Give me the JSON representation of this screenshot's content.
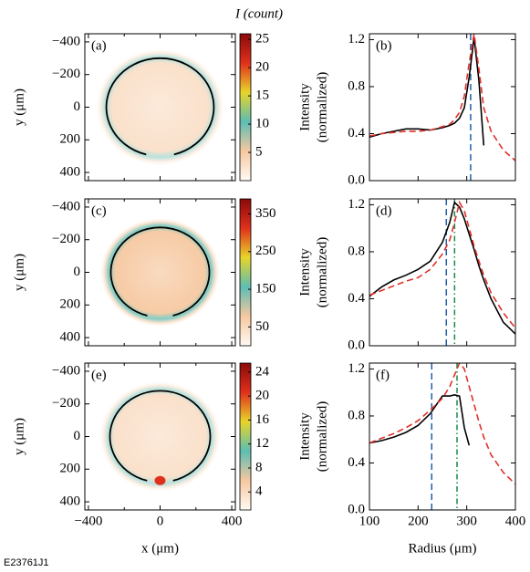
{
  "colorbar_title": "I (count)",
  "footer": "E23761J1",
  "chart_data": [
    {
      "type": "heatmap",
      "panel": "(a)",
      "ylabel": "y (μm)",
      "xlim": [
        -420,
        420
      ],
      "ylim": [
        -450,
        450
      ],
      "y_inverted": true,
      "xticks": [
        {
          "value": -400,
          "label": "−400"
        },
        0,
        400
      ],
      "xminor_ticks": [
        -200,
        200
      ],
      "show_xtick_labels": false,
      "yticks": [
        {
          "value": -400,
          "label": "−400"
        },
        {
          "value": -200,
          "label": "−200"
        },
        0,
        200,
        400
      ],
      "ring_radius": 300,
      "colormap": [
        "#fffaf4",
        "#f6c8a0",
        "#5dbdb3",
        "#e8d52a",
        "#e0301c",
        "#8a0a0a"
      ],
      "colorbar": {
        "lim": [
          0,
          26
        ],
        "ticks": [
          5,
          10,
          15,
          20,
          25
        ]
      }
    },
    {
      "type": "line",
      "panel": "(b)",
      "ylabel": [
        "Intensity",
        "(normalized)"
      ],
      "xlim": [
        100,
        400
      ],
      "ylim": [
        0,
        1.25
      ],
      "xticks": [
        100,
        200,
        300,
        400
      ],
      "show_xtick_labels": false,
      "yticks": [
        {
          "value": 0,
          "label": "0.0"
        },
        0.4,
        0.8,
        1.2
      ],
      "x": [
        100,
        125,
        150,
        175,
        200,
        225,
        250,
        265,
        275,
        285,
        295,
        305,
        315,
        325,
        335,
        350,
        375,
        400
      ],
      "series": [
        {
          "color": "#000000",
          "style": "solid",
          "values": [
            0.37,
            0.4,
            0.42,
            0.44,
            0.44,
            0.43,
            0.45,
            0.47,
            0.49,
            0.53,
            0.62,
            0.88,
            1.22,
            0.85,
            0.3,
            null,
            null,
            null
          ]
        },
        {
          "color": "#e0302a",
          "style": "dashed",
          "values": [
            0.38,
            0.4,
            0.41,
            0.42,
            0.42,
            0.43,
            0.46,
            0.48,
            0.52,
            0.58,
            0.72,
            1.0,
            1.25,
            0.95,
            0.62,
            0.42,
            0.26,
            0.17
          ]
        }
      ],
      "markers": [
        {
          "x": 308,
          "color": "#1f5fa8",
          "style": "dashed"
        }
      ]
    },
    {
      "type": "heatmap",
      "panel": "(c)",
      "ylabel": "y (μm)",
      "xlim": [
        -420,
        420
      ],
      "ylim": [
        -450,
        450
      ],
      "y_inverted": true,
      "xticks": [
        {
          "value": -400,
          "label": "−400"
        },
        0,
        400
      ],
      "xminor_ticks": [
        -200,
        200
      ],
      "show_xtick_labels": false,
      "yticks": [
        {
          "value": -400,
          "label": "−400"
        },
        {
          "value": -200,
          "label": "−200"
        },
        0,
        200,
        400
      ],
      "ring_radius": 275,
      "colormap": [
        "#fffaf4",
        "#f6c8a0",
        "#5dbdb3",
        "#e8d52a",
        "#e0301c",
        "#8a0a0a"
      ],
      "colorbar": {
        "lim": [
          0,
          390
        ],
        "ticks": [
          50,
          150,
          250,
          350
        ]
      }
    },
    {
      "type": "line",
      "panel": "(d)",
      "ylabel": [
        "Intensity",
        "(normalized)"
      ],
      "xlim": [
        100,
        400
      ],
      "ylim": [
        0,
        1.25
      ],
      "xticks": [
        100,
        200,
        300,
        400
      ],
      "show_xtick_labels": false,
      "yticks": [
        {
          "value": 0,
          "label": "0.0"
        },
        0.4,
        0.8,
        1.2
      ],
      "x": [
        100,
        125,
        150,
        175,
        200,
        225,
        250,
        265,
        275,
        285,
        295,
        305,
        315,
        325,
        335,
        350,
        375,
        400
      ],
      "series": [
        {
          "color": "#000000",
          "style": "solid",
          "values": [
            0.42,
            0.5,
            0.56,
            0.6,
            0.65,
            0.72,
            0.88,
            1.05,
            1.22,
            1.18,
            1.08,
            0.95,
            0.82,
            0.68,
            0.56,
            0.4,
            0.2,
            0.1
          ]
        },
        {
          "color": "#e0302a",
          "style": "dashed",
          "values": [
            0.43,
            0.47,
            0.51,
            0.55,
            0.58,
            0.65,
            0.78,
            0.9,
            1.05,
            1.22,
            1.15,
            1.0,
            0.85,
            0.72,
            0.6,
            0.45,
            0.28,
            0.15
          ]
        }
      ],
      "markers": [
        {
          "x": 258,
          "color": "#1f5fa8",
          "style": "dashed"
        },
        {
          "x": 275,
          "color": "#1a8a4a",
          "style": "dashdot"
        }
      ]
    },
    {
      "type": "heatmap",
      "panel": "(e)",
      "ylabel": "y (μm)",
      "xlabel": "x (μm)",
      "xlim": [
        -420,
        420
      ],
      "ylim": [
        -450,
        450
      ],
      "y_inverted": true,
      "xticks": [
        {
          "value": -400,
          "label": "−400"
        },
        0,
        400
      ],
      "xminor_ticks": [
        -200,
        200
      ],
      "show_xtick_labels": true,
      "yticks": [
        {
          "value": -400,
          "label": "−400"
        },
        {
          "value": -200,
          "label": "−200"
        },
        0,
        200,
        400
      ],
      "ring_radius": 280,
      "colormap": [
        "#fffaf4",
        "#f6c8a0",
        "#5dbdb3",
        "#e8d52a",
        "#e0301c",
        "#8a0a0a"
      ],
      "colorbar": {
        "lim": [
          1,
          25.5
        ],
        "ticks": [
          4,
          8,
          12,
          16,
          20,
          24
        ]
      }
    },
    {
      "type": "line",
      "panel": "(f)",
      "ylabel": [
        "Intensity",
        "(normalized)"
      ],
      "xlabel": "Radius (μm)",
      "xlim": [
        100,
        400
      ],
      "ylim": [
        0,
        1.25
      ],
      "xticks": [
        100,
        200,
        300,
        400
      ],
      "show_xtick_labels": true,
      "yticks": [
        {
          "value": 0,
          "label": "0.0"
        },
        0.4,
        0.8,
        1.2
      ],
      "x": [
        100,
        125,
        150,
        175,
        200,
        225,
        250,
        265,
        275,
        285,
        295,
        305,
        315,
        325,
        335,
        350,
        375,
        400
      ],
      "series": [
        {
          "color": "#000000",
          "style": "solid",
          "values": [
            0.57,
            0.59,
            0.62,
            0.66,
            0.72,
            0.82,
            0.97,
            0.97,
            0.98,
            0.97,
            0.7,
            0.55,
            null,
            null,
            null,
            null,
            null,
            null
          ]
        },
        {
          "color": "#e0302a",
          "style": "dashed",
          "values": [
            0.57,
            0.61,
            0.65,
            0.7,
            0.76,
            0.85,
            0.95,
            1.05,
            1.15,
            1.25,
            1.2,
            1.05,
            0.9,
            0.75,
            0.62,
            0.47,
            0.32,
            0.22
          ]
        }
      ],
      "markers": [
        {
          "x": 228,
          "color": "#1f5fa8",
          "style": "dashed"
        },
        {
          "x": 280,
          "color": "#1a8a4a",
          "style": "dashdot"
        }
      ]
    }
  ]
}
